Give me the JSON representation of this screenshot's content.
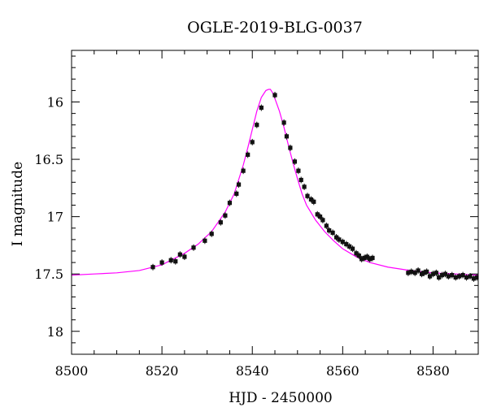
{
  "chart_data": {
    "type": "scatter",
    "title": "OGLE-2019-BLG-0037",
    "xlabel": "HJD - 2450000",
    "ylabel": "I magnitude",
    "xlim": [
      8500,
      8590
    ],
    "ylim": [
      18.2,
      15.55
    ],
    "y_inverted": true,
    "grid": false,
    "x_major_ticks": [
      8500,
      8520,
      8540,
      8560,
      8580
    ],
    "x_tick_labels": [
      "8500",
      "8520",
      "8540",
      "8560",
      "8580"
    ],
    "x_minor_step": 5,
    "y_major_ticks": [
      16,
      16.5,
      17,
      17.5,
      18
    ],
    "y_tick_labels": [
      "16",
      "16.5",
      "17",
      "17.5",
      "18"
    ],
    "y_minor_step": 0.1,
    "colors": {
      "model": "#ff00ff",
      "points": "#111111",
      "axes": "#000000"
    },
    "model": {
      "name": "",
      "x": [
        8500,
        8505,
        8510,
        8515,
        8520,
        8525,
        8528,
        8531,
        8534,
        8536,
        8538,
        8539,
        8540,
        8541,
        8542,
        8543,
        8543.6,
        8544,
        8544.5,
        8545,
        8546,
        8547,
        8548,
        8549,
        8550,
        8551,
        8552,
        8554,
        8556,
        8558,
        8560,
        8563,
        8566,
        8570,
        8575,
        8580,
        8585,
        8590
      ],
      "y": [
        17.51,
        17.5,
        17.49,
        17.47,
        17.42,
        17.32,
        17.24,
        17.13,
        16.96,
        16.8,
        16.55,
        16.4,
        16.24,
        16.08,
        15.96,
        15.9,
        15.89,
        15.89,
        15.92,
        15.97,
        16.08,
        16.22,
        16.38,
        16.53,
        16.67,
        16.8,
        16.9,
        17.03,
        17.13,
        17.21,
        17.28,
        17.35,
        17.4,
        17.44,
        17.47,
        17.49,
        17.5,
        17.51
      ]
    },
    "observations": {
      "x": [
        8518,
        8520,
        8522,
        8523,
        8524,
        8525,
        8527,
        8529.5,
        8531,
        8533,
        8534,
        8535,
        8536.5,
        8537,
        8538,
        8539,
        8540,
        8541,
        8542,
        8545,
        8547,
        8547.6,
        8548.4,
        8549.4,
        8550.2,
        8550.8,
        8551.5,
        8552.2,
        8553,
        8553.6,
        8554.4,
        8555,
        8555.6,
        8556.4,
        8557,
        8557.8,
        8558.6,
        8559.2,
        8560,
        8560.8,
        8561.5,
        8562.2,
        8563,
        8563.6,
        8564.2,
        8564.8,
        8565.4,
        8566,
        8566.6,
        8574.5,
        8575.2,
        8576,
        8576.7,
        8577.5,
        8578,
        8578.6,
        8579.3,
        8580,
        8580.7,
        8581.3,
        8582,
        8582.7,
        8583.4,
        8584.2,
        8585,
        8585.8,
        8586.6,
        8587.4,
        8588.2,
        8589,
        8589.7
      ],
      "y": [
        17.44,
        17.4,
        17.38,
        17.39,
        17.33,
        17.35,
        17.27,
        17.21,
        17.15,
        17.05,
        16.99,
        16.88,
        16.8,
        16.72,
        16.6,
        16.46,
        16.35,
        16.2,
        16.05,
        15.94,
        16.18,
        16.3,
        16.4,
        16.52,
        16.6,
        16.68,
        16.74,
        16.82,
        16.85,
        16.87,
        16.98,
        17.0,
        17.03,
        17.08,
        17.12,
        17.14,
        17.18,
        17.2,
        17.22,
        17.24,
        17.26,
        17.28,
        17.32,
        17.34,
        17.37,
        17.36,
        17.35,
        17.37,
        17.36,
        17.49,
        17.48,
        17.49,
        17.47,
        17.5,
        17.49,
        17.48,
        17.52,
        17.5,
        17.49,
        17.53,
        17.51,
        17.5,
        17.52,
        17.51,
        17.53,
        17.52,
        17.51,
        17.53,
        17.52,
        17.54,
        17.53
      ]
    }
  }
}
